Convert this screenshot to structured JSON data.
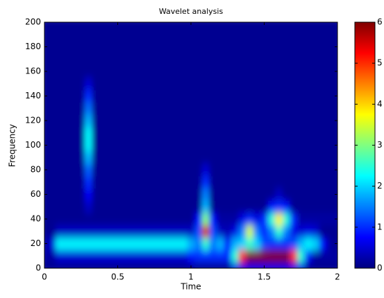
{
  "chart_data": {
    "type": "heatmap",
    "title": "Wavelet analysis",
    "xlabel": "Time",
    "ylabel": "Frequency",
    "x": [
      0,
      0.05,
      0.1,
      0.15,
      0.2,
      0.25,
      0.3,
      0.35,
      0.4,
      0.45,
      0.5,
      0.55,
      0.6,
      0.65,
      0.7,
      0.75,
      0.8,
      0.85,
      0.9,
      0.95,
      1,
      1.05,
      1.1,
      1.15,
      1.2,
      1.25,
      1.3,
      1.35,
      1.4,
      1.45,
      1.5,
      1.55,
      1.6,
      1.65,
      1.7,
      1.75,
      1.8,
      1.85,
      1.9,
      1.95,
      2
    ],
    "y": [
      0,
      10,
      20,
      30,
      40,
      50,
      60,
      70,
      80,
      90,
      100,
      110,
      120,
      130,
      140,
      150,
      160,
      170,
      180,
      190,
      200
    ],
    "z": [
      [
        0.1,
        0.1,
        0.1,
        0.1,
        0.1,
        0.1,
        0.1,
        0.1,
        0.1,
        0.1,
        0.1,
        0.1,
        0.1,
        0.1,
        0.1,
        0.1,
        0.1,
        0.1,
        0.1,
        0.1,
        0.1,
        0.1,
        0.1,
        0.1,
        0.1,
        0.1,
        0.6,
        0.6,
        0.6,
        0.6,
        0.6,
        0.6,
        0.6,
        0.6,
        0.6,
        0.6,
        0.1,
        0.1,
        0.1,
        0.1,
        0.1
      ],
      [
        0.2,
        0.2,
        0.5,
        0.5,
        0.5,
        0.5,
        0.5,
        0.5,
        0.5,
        0.5,
        0.5,
        0.5,
        0.5,
        0.5,
        0.5,
        0.5,
        0.5,
        0.5,
        0.5,
        0.5,
        0.8,
        1.0,
        1.0,
        1.0,
        1.0,
        1.0,
        2.5,
        5.0,
        6,
        6,
        6,
        6,
        6,
        6,
        5.0,
        2.5,
        0.8,
        0.2,
        0.2,
        0.2,
        0.2
      ],
      [
        0.2,
        0.5,
        2.2,
        2.2,
        2.2,
        2.2,
        2.2,
        2.2,
        2.2,
        2.2,
        2.2,
        2.2,
        2.2,
        2.2,
        2.2,
        2.2,
        2.2,
        2.2,
        2.2,
        2.2,
        1.8,
        1.5,
        2.5,
        1.5,
        1.8,
        0.8,
        1.8,
        2.0,
        2.5,
        2.0,
        1.2,
        1.0,
        1.0,
        1.0,
        1.2,
        1.8,
        2.2,
        2.0,
        0.8,
        0.2,
        0.1
      ],
      [
        0.1,
        0.1,
        0.4,
        0.4,
        0.4,
        0.4,
        0.4,
        0.4,
        0.4,
        0.4,
        0.4,
        0.4,
        0.4,
        0.4,
        0.4,
        0.4,
        0.4,
        0.4,
        0.4,
        0.4,
        0.4,
        1.2,
        5.5,
        1.2,
        0.4,
        0.3,
        0.6,
        1.5,
        3.5,
        1.5,
        0.8,
        1.5,
        2.5,
        1.5,
        0.6,
        0.5,
        0.6,
        0.5,
        0.1,
        0.1,
        0.1
      ],
      [
        0.1,
        0.1,
        0.1,
        0.1,
        0.1,
        0.1,
        0.1,
        0.1,
        0.1,
        0.1,
        0.1,
        0.1,
        0.1,
        0.1,
        0.1,
        0.1,
        0.1,
        0.1,
        0.1,
        0.1,
        0.1,
        0.8,
        3.0,
        0.8,
        0.2,
        0.2,
        0.2,
        0.6,
        1.0,
        0.6,
        1.0,
        2.5,
        3.8,
        2.5,
        1.0,
        0.2,
        0.2,
        0.2,
        0.2,
        0.2,
        0.2
      ],
      [
        0.1,
        0.1,
        0.1,
        0.1,
        0.1,
        0.1,
        0.4,
        0.1,
        0.1,
        0.1,
        0.1,
        0.1,
        0.1,
        0.1,
        0.1,
        0.1,
        0.1,
        0.1,
        0.1,
        0.1,
        0.1,
        0.1,
        1.8,
        0.1,
        0.1,
        0.1,
        0.1,
        0.1,
        0.1,
        0.1,
        0.1,
        0.8,
        1.0,
        0.8,
        0.1,
        0.1,
        0.1,
        0.1,
        0.1,
        0.1,
        0.1
      ],
      [
        0.1,
        0.1,
        0.1,
        0.1,
        0.1,
        0.1,
        0.7,
        0.1,
        0.1,
        0.1,
        0.1,
        0.1,
        0.1,
        0.1,
        0.1,
        0.1,
        0.1,
        0.1,
        0.1,
        0.1,
        0.1,
        0.1,
        1.5,
        0.1,
        0.1,
        0.1,
        0.1,
        0.1,
        0.1,
        0.1,
        0.1,
        0.1,
        0.4,
        0.1,
        0.1,
        0.1,
        0.1,
        0.1,
        0.1,
        0.1,
        0.1
      ],
      [
        0.1,
        0.1,
        0.1,
        0.1,
        0.1,
        0.1,
        1.0,
        0.1,
        0.1,
        0.1,
        0.1,
        0.1,
        0.1,
        0.1,
        0.1,
        0.1,
        0.1,
        0.1,
        0.1,
        0.1,
        0.1,
        0.1,
        1.0,
        0.1,
        0.1,
        0.1,
        0.1,
        0.1,
        0.1,
        0.1,
        0.1,
        0.1,
        0.1,
        0.1,
        0.1,
        0.1,
        0.1,
        0.1,
        0.1,
        0.1,
        0.1
      ],
      [
        0.1,
        0.1,
        0.1,
        0.1,
        0.1,
        0.1,
        1.3,
        0.1,
        0.1,
        0.1,
        0.1,
        0.1,
        0.1,
        0.1,
        0.1,
        0.1,
        0.1,
        0.1,
        0.1,
        0.1,
        0.1,
        0.1,
        0.5,
        0.1,
        0.1,
        0.1,
        0.1,
        0.1,
        0.1,
        0.1,
        0.1,
        0.1,
        0.1,
        0.1,
        0.1,
        0.1,
        0.1,
        0.1,
        0.1,
        0.1,
        0.1
      ],
      [
        0.1,
        0.1,
        0.1,
        0.1,
        0.1,
        0.1,
        1.8,
        0.1,
        0.1,
        0.1,
        0.1,
        0.1,
        0.1,
        0.1,
        0.1,
        0.1,
        0.1,
        0.1,
        0.1,
        0.1,
        0.1,
        0.1,
        0.1,
        0.1,
        0.1,
        0.1,
        0.1,
        0.1,
        0.1,
        0.1,
        0.1,
        0.1,
        0.1,
        0.1,
        0.1,
        0.1,
        0.1,
        0.1,
        0.1,
        0.1,
        0.1
      ],
      [
        0.1,
        0.1,
        0.1,
        0.1,
        0.1,
        0.1,
        2.2,
        0.1,
        0.1,
        0.1,
        0.1,
        0.1,
        0.1,
        0.1,
        0.1,
        0.1,
        0.1,
        0.1,
        0.1,
        0.1,
        0.1,
        0.1,
        0.1,
        0.1,
        0.1,
        0.1,
        0.1,
        0.1,
        0.1,
        0.1,
        0.1,
        0.1,
        0.1,
        0.1,
        0.1,
        0.1,
        0.1,
        0.1,
        0.1,
        0.1,
        0.1
      ],
      [
        0.1,
        0.1,
        0.1,
        0.1,
        0.1,
        0.1,
        2.2,
        0.1,
        0.1,
        0.1,
        0.1,
        0.1,
        0.1,
        0.1,
        0.1,
        0.1,
        0.1,
        0.1,
        0.1,
        0.1,
        0.1,
        0.1,
        0.1,
        0.1,
        0.1,
        0.1,
        0.1,
        0.1,
        0.1,
        0.1,
        0.1,
        0.1,
        0.1,
        0.1,
        0.1,
        0.1,
        0.1,
        0.1,
        0.1,
        0.1,
        0.1
      ],
      [
        0.1,
        0.1,
        0.1,
        0.1,
        0.1,
        0.1,
        1.8,
        0.1,
        0.1,
        0.1,
        0.1,
        0.1,
        0.1,
        0.1,
        0.1,
        0.1,
        0.1,
        0.1,
        0.1,
        0.1,
        0.1,
        0.1,
        0.1,
        0.1,
        0.1,
        0.1,
        0.1,
        0.1,
        0.1,
        0.1,
        0.1,
        0.1,
        0.1,
        0.1,
        0.1,
        0.1,
        0.1,
        0.1,
        0.1,
        0.1,
        0.1
      ],
      [
        0.1,
        0.1,
        0.1,
        0.1,
        0.1,
        0.1,
        1.4,
        0.1,
        0.1,
        0.1,
        0.1,
        0.1,
        0.1,
        0.1,
        0.1,
        0.1,
        0.1,
        0.1,
        0.1,
        0.1,
        0.1,
        0.1,
        0.1,
        0.1,
        0.1,
        0.1,
        0.1,
        0.1,
        0.1,
        0.1,
        0.1,
        0.1,
        0.1,
        0.1,
        0.1,
        0.1,
        0.1,
        0.1,
        0.1,
        0.1,
        0.1
      ],
      [
        0.1,
        0.1,
        0.1,
        0.1,
        0.1,
        0.1,
        1.0,
        0.1,
        0.1,
        0.1,
        0.1,
        0.1,
        0.1,
        0.1,
        0.1,
        0.1,
        0.1,
        0.1,
        0.1,
        0.1,
        0.1,
        0.1,
        0.1,
        0.1,
        0.1,
        0.1,
        0.1,
        0.1,
        0.1,
        0.1,
        0.1,
        0.1,
        0.1,
        0.1,
        0.1,
        0.1,
        0.1,
        0.1,
        0.1,
        0.1,
        0.1
      ],
      [
        0.1,
        0.1,
        0.1,
        0.1,
        0.1,
        0.1,
        0.5,
        0.1,
        0.1,
        0.1,
        0.1,
        0.1,
        0.1,
        0.1,
        0.1,
        0.1,
        0.1,
        0.1,
        0.1,
        0.1,
        0.1,
        0.1,
        0.1,
        0.1,
        0.1,
        0.1,
        0.1,
        0.1,
        0.1,
        0.1,
        0.1,
        0.1,
        0.1,
        0.1,
        0.1,
        0.1,
        0.1,
        0.1,
        0.1,
        0.1,
        0.1
      ],
      [
        0.1,
        0.1,
        0.1,
        0.1,
        0.1,
        0.1,
        0.1,
        0.1,
        0.1,
        0.1,
        0.1,
        0.1,
        0.1,
        0.1,
        0.1,
        0.1,
        0.1,
        0.1,
        0.1,
        0.1,
        0.1,
        0.1,
        0.1,
        0.1,
        0.1,
        0.1,
        0.1,
        0.1,
        0.1,
        0.1,
        0.1,
        0.1,
        0.1,
        0.1,
        0.1,
        0.1,
        0.1,
        0.1,
        0.1,
        0.1,
        0.1
      ],
      [
        0.1,
        0.1,
        0.1,
        0.1,
        0.1,
        0.1,
        0.1,
        0.1,
        0.1,
        0.1,
        0.1,
        0.1,
        0.1,
        0.1,
        0.1,
        0.1,
        0.1,
        0.1,
        0.1,
        0.1,
        0.1,
        0.1,
        0.1,
        0.1,
        0.1,
        0.1,
        0.1,
        0.1,
        0.1,
        0.1,
        0.1,
        0.1,
        0.1,
        0.1,
        0.1,
        0.1,
        0.1,
        0.1,
        0.1,
        0.1,
        0.1
      ],
      [
        0.1,
        0.1,
        0.1,
        0.1,
        0.1,
        0.1,
        0.1,
        0.1,
        0.1,
        0.1,
        0.1,
        0.1,
        0.1,
        0.1,
        0.1,
        0.1,
        0.1,
        0.1,
        0.1,
        0.1,
        0.1,
        0.1,
        0.1,
        0.1,
        0.1,
        0.1,
        0.1,
        0.1,
        0.1,
        0.1,
        0.1,
        0.1,
        0.1,
        0.1,
        0.1,
        0.1,
        0.1,
        0.1,
        0.1,
        0.1,
        0.1
      ],
      [
        0.1,
        0.1,
        0.1,
        0.1,
        0.1,
        0.1,
        0.1,
        0.1,
        0.1,
        0.1,
        0.1,
        0.1,
        0.1,
        0.1,
        0.1,
        0.1,
        0.1,
        0.1,
        0.1,
        0.1,
        0.1,
        0.1,
        0.1,
        0.1,
        0.1,
        0.1,
        0.1,
        0.1,
        0.1,
        0.1,
        0.1,
        0.1,
        0.1,
        0.1,
        0.1,
        0.1,
        0.1,
        0.1,
        0.1,
        0.1,
        0.1
      ],
      [
        0.1,
        0.1,
        0.1,
        0.1,
        0.1,
        0.1,
        0.1,
        0.1,
        0.1,
        0.1,
        0.1,
        0.1,
        0.1,
        0.1,
        0.1,
        0.1,
        0.1,
        0.1,
        0.1,
        0.1,
        0.1,
        0.1,
        0.1,
        0.1,
        0.1,
        0.1,
        0.1,
        0.1,
        0.1,
        0.1,
        0.1,
        0.1,
        0.1,
        0.1,
        0.1,
        0.1,
        0.1,
        0.1,
        0.1,
        0.1,
        0.1
      ]
    ],
    "colormap": "jet",
    "clim": [
      0,
      6
    ],
    "cticks": [
      0,
      1,
      2,
      3,
      4,
      5,
      6
    ],
    "xlim": [
      0,
      2
    ],
    "xticks": [
      0,
      0.5,
      1,
      1.5,
      2
    ],
    "ylim": [
      0,
      200
    ],
    "yticks": [
      0,
      20,
      40,
      60,
      80,
      100,
      120,
      140,
      160,
      180,
      200
    ]
  }
}
